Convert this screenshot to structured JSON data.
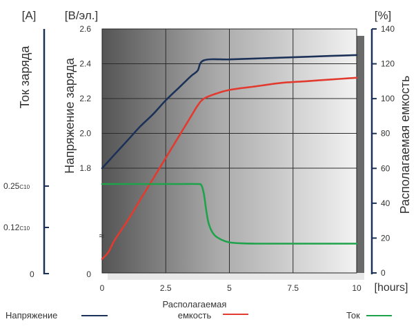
{
  "chart_data": {
    "type": "line",
    "x_unit": "[hours]",
    "x_ticks": [
      0,
      2.5,
      5,
      7.5,
      10
    ],
    "xlim": [
      0,
      10
    ],
    "voltage_axis": {
      "unit": "[В/эл.]",
      "label": "Напряжение заряда",
      "ticks": [
        1.8,
        2.0,
        2.2,
        2.4,
        2.6
      ],
      "bottom_label": "0",
      "range": [
        1.8,
        2.6
      ]
    },
    "capacity_axis": {
      "unit": "[%]",
      "label": "Располагаемая емкость",
      "ticks": [
        0,
        20,
        40,
        60,
        80,
        100,
        120,
        140
      ],
      "range": [
        0,
        140
      ]
    },
    "current_axis": {
      "unit": "[A]",
      "label": "Ток заряда",
      "ticks": [
        {
          "main": "0.25",
          "sub": "C10",
          "value": 0.25
        },
        {
          "main": "0.12",
          "sub": "C10",
          "value": 0.12
        },
        {
          "main": "0",
          "sub": "",
          "value": 0
        }
      ]
    },
    "series": [
      {
        "name": "Напряжение",
        "axis": "voltage",
        "color": "#1b3157",
        "x": [
          0,
          0.5,
          1,
          1.5,
          2,
          2.5,
          3,
          3.5,
          3.75,
          4,
          5,
          6,
          7,
          8,
          9,
          10
        ],
        "values": [
          1.8,
          1.88,
          1.96,
          2.04,
          2.11,
          2.19,
          2.26,
          2.33,
          2.36,
          2.42,
          2.425,
          2.43,
          2.435,
          2.44,
          2.445,
          2.45
        ]
      },
      {
        "name": "Располагаемая емкость",
        "axis": "capacity",
        "color": "#e23a2e",
        "x": [
          0,
          0.25,
          0.5,
          1,
          1.5,
          2,
          2.5,
          3,
          3.5,
          3.75,
          4,
          4.5,
          5,
          6,
          7,
          8,
          9,
          10
        ],
        "values": [
          8,
          12,
          19,
          30,
          42,
          54,
          66,
          78,
          90,
          96,
          100,
          103,
          105,
          107,
          109,
          110,
          111,
          112
        ]
      },
      {
        "name": "Ток",
        "axis": "current",
        "color": "#1ea24a",
        "x": [
          0,
          1,
          2,
          3,
          3.75,
          3.9,
          4,
          4.1,
          4.2,
          4.4,
          4.7,
          5,
          5.5,
          6,
          7,
          8,
          9,
          10
        ],
        "values": [
          0.25,
          0.25,
          0.25,
          0.25,
          0.25,
          0.245,
          0.21,
          0.14,
          0.09,
          0.05,
          0.03,
          0.02,
          0.016,
          0.015,
          0.015,
          0.015,
          0.015,
          0.015
        ]
      }
    ],
    "legend": {
      "placement": "bottom",
      "labels": [
        "Напряжение",
        "Располагаемая емкость",
        "Ток"
      ]
    }
  }
}
